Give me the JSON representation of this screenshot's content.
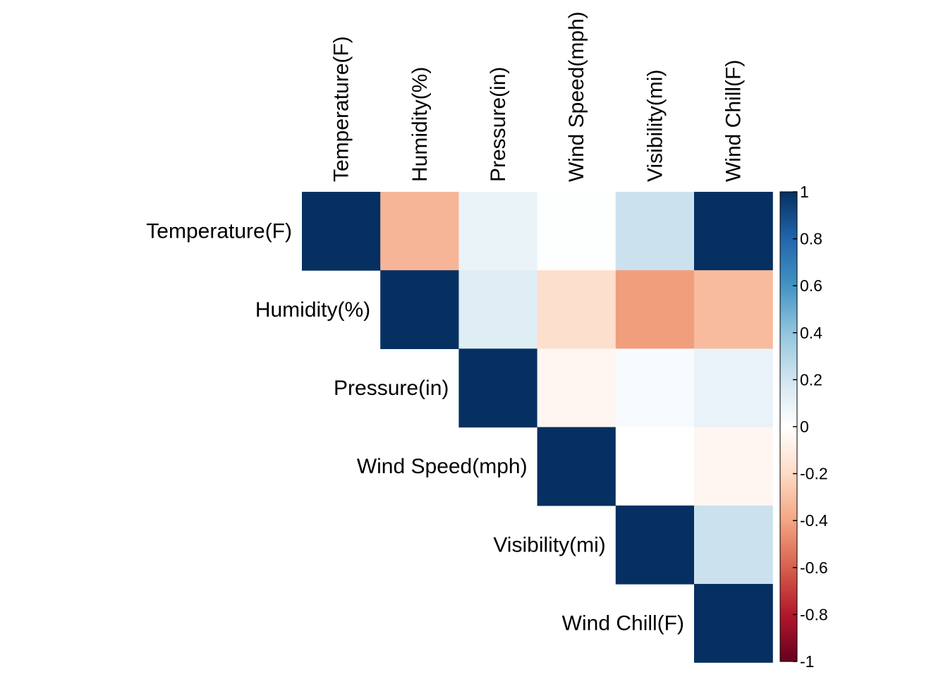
{
  "chart_data": {
    "type": "heatmap",
    "variables": [
      "Temperature(F)",
      "Humidity(%)",
      "Pressure(in)",
      "Wind Speed(mph)",
      "Visibility(mi)",
      "Wind Chill(F)"
    ],
    "matrix": [
      [
        1.0,
        -0.34,
        0.09,
        0.01,
        0.22,
        1.0
      ],
      [
        -0.34,
        1.0,
        0.14,
        -0.18,
        -0.42,
        -0.32
      ],
      [
        0.09,
        0.14,
        1.0,
        -0.05,
        0.03,
        0.1
      ],
      [
        0.01,
        -0.18,
        -0.05,
        1.0,
        0.0,
        -0.05
      ],
      [
        0.22,
        -0.42,
        0.03,
        0.0,
        1.0,
        0.22
      ],
      [
        1.0,
        -0.32,
        0.1,
        -0.05,
        0.22,
        1.0
      ]
    ],
    "layout": "upper-triangle",
    "colorbar": {
      "min": -1,
      "max": 1,
      "ticks": [
        1,
        0.8,
        0.6,
        0.4,
        0.2,
        0,
        -0.2,
        -0.4,
        -0.6,
        -0.8,
        -1
      ],
      "tick_labels": [
        "1",
        "0.8",
        "0.6",
        "0.4",
        "0.2",
        "0",
        "-0.2",
        "-0.4",
        "-0.6",
        "-0.8",
        "-1"
      ],
      "colors": [
        "#67001F",
        "#B2182B",
        "#D6604D",
        "#F4A582",
        "#FDDBC7",
        "#FFFFFF",
        "#D1E5F0",
        "#92C5DE",
        "#4393C3",
        "#2166AC",
        "#053061"
      ]
    }
  }
}
